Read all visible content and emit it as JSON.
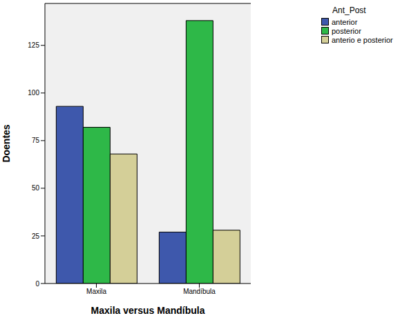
{
  "chart_data": {
    "type": "bar",
    "categories": [
      "Maxila",
      "Mandíbula"
    ],
    "x_label": "Maxila versus Mandíbula",
    "y_label": "Doentes",
    "legend_title": "Ant_Post",
    "series": [
      {
        "name": "anterior",
        "color": "#3e58ac",
        "values": [
          93,
          27
        ]
      },
      {
        "name": "posterior",
        "color": "#2eb848",
        "values": [
          82,
          138
        ]
      },
      {
        "name": "anterio e posterior",
        "color": "#d4cf98",
        "values": [
          68,
          28
        ]
      }
    ],
    "ylim": [
      0,
      147
    ],
    "yticks": [
      0,
      25,
      50,
      75,
      100,
      125
    ],
    "grid": false,
    "legend": "right"
  }
}
